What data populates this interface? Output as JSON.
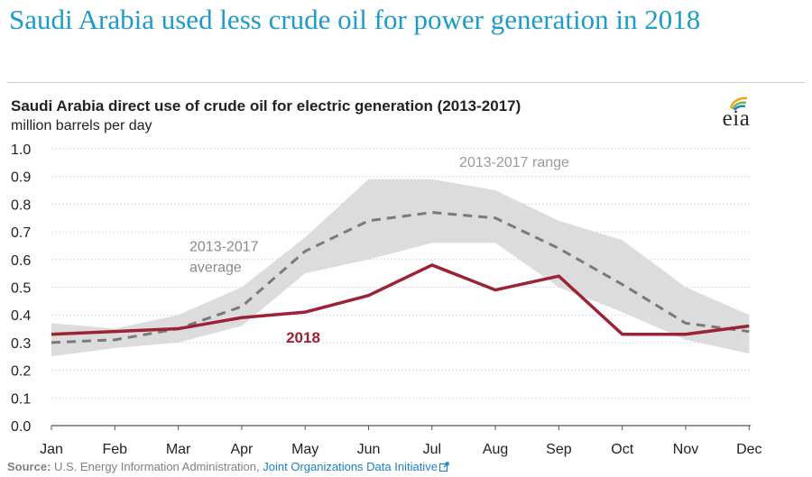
{
  "headline": "Saudi Arabia used less crude oil for power generation in 2018",
  "chart_data": {
    "type": "line",
    "title": "Saudi Arabia direct use of crude oil for electric generation (2013-2017)",
    "ylabel": "million barrels per day",
    "categories": [
      "Jan",
      "Feb",
      "Mar",
      "Apr",
      "May",
      "Jun",
      "Jul",
      "Aug",
      "Sep",
      "Oct",
      "Nov",
      "Dec"
    ],
    "ylim": [
      0,
      1.0
    ],
    "yticks": [
      "0.0",
      "0.1",
      "0.2",
      "0.3",
      "0.4",
      "0.5",
      "0.6",
      "0.7",
      "0.8",
      "0.9",
      "1.0"
    ],
    "grid": true,
    "range": {
      "name": "2013-2017 range",
      "low": [
        0.25,
        0.28,
        0.3,
        0.36,
        0.55,
        0.6,
        0.66,
        0.66,
        0.5,
        0.41,
        0.31,
        0.26
      ],
      "high": [
        0.37,
        0.35,
        0.4,
        0.5,
        0.68,
        0.89,
        0.89,
        0.85,
        0.74,
        0.67,
        0.5,
        0.4
      ]
    },
    "series": [
      {
        "name": "2013-2017 average",
        "values": [
          0.3,
          0.31,
          0.35,
          0.43,
          0.63,
          0.74,
          0.77,
          0.75,
          0.64,
          0.51,
          0.37,
          0.34
        ]
      },
      {
        "name": "2018",
        "values": [
          0.33,
          0.34,
          0.35,
          0.39,
          0.41,
          0.47,
          0.58,
          0.49,
          0.54,
          0.33,
          0.33,
          0.36
        ]
      }
    ],
    "labels": {
      "range": "2013-2017 range",
      "average_line1": "2013-2017",
      "average_line2": "average",
      "current": "2018"
    },
    "colors": {
      "range": "#dcdcdc",
      "average": "#7a7a7a",
      "current": "#9b2335",
      "label_gray": "#9a9a9a",
      "grid": "#d9d9d9"
    }
  },
  "logo": {
    "text": "eia",
    "icon": "eia-leaf-logo"
  },
  "source": {
    "label": "Source:",
    "text": "U.S. Energy Information Administration,",
    "link": "Joint Organizations Data Initiative",
    "link_icon": "external-link-icon"
  }
}
